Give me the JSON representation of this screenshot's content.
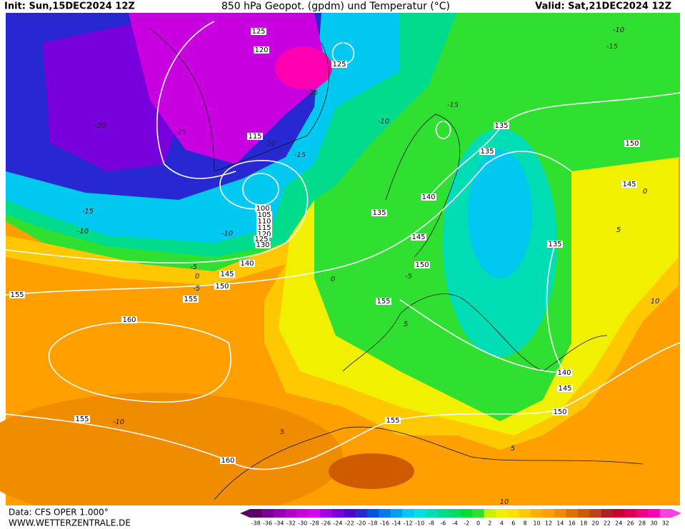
{
  "header": {
    "init": "Init: Sun,15DEC2024 12Z",
    "title": "850 hPa Geopot. (gpdm) und Temperatur (°C)",
    "valid": "Valid: Sat,21DEC2024 12Z"
  },
  "geopotential_labels": [
    "125",
    "120",
    "125",
    "115",
    "100",
    "105",
    "110",
    "115",
    "120",
    "125",
    "130",
    "140",
    "145",
    "150",
    "155",
    "155",
    "160",
    "155",
    "150",
    "145",
    "140",
    "135",
    "135",
    "135",
    "150",
    "145",
    "135",
    "140",
    "145",
    "150",
    "155",
    "155",
    "160"
  ],
  "temperature_labels": [
    "-10",
    "-15",
    "-20",
    "-25",
    "-20",
    "-25",
    "-15",
    "-15",
    "-10",
    "-10",
    "-5",
    "0",
    "-5",
    "0",
    "-5",
    "5",
    "-10",
    "5",
    "5",
    "10",
    "10",
    "5",
    "0",
    "-10",
    "-15"
  ],
  "colorbar": {
    "levels": [
      -38,
      -36,
      -34,
      -32,
      -30,
      -28,
      -26,
      -24,
      -22,
      -20,
      -18,
      -16,
      -14,
      -12,
      -10,
      -8,
      -6,
      -4,
      -2,
      0,
      2,
      4,
      6,
      8,
      10,
      12,
      14,
      16,
      18,
      20,
      22,
      24,
      26,
      28,
      30,
      32
    ],
    "colors": [
      "#5a0064",
      "#7a0090",
      "#9400b0",
      "#b000cc",
      "#c800e0",
      "#d800f0",
      "#a000e6",
      "#7800dc",
      "#5000d2",
      "#2828d2",
      "#0050e6",
      "#0078f0",
      "#00a0f0",
      "#00c8f0",
      "#00e0e0",
      "#00dcb4",
      "#00dc8c",
      "#00dc64",
      "#00dc3c",
      "#30e030",
      "#c8f000",
      "#f0f000",
      "#ffe000",
      "#ffc800",
      "#ffb000",
      "#ffa000",
      "#f08c00",
      "#e07000",
      "#d05a00",
      "#c04020",
      "#b02020",
      "#c80030",
      "#e00050",
      "#f00080",
      "#ff00b0",
      "#ff40e0"
    ]
  },
  "footer": {
    "data": "Data: CFS OPER 1.000°",
    "site": "WWW.WETTERZENTRALE.DE"
  }
}
